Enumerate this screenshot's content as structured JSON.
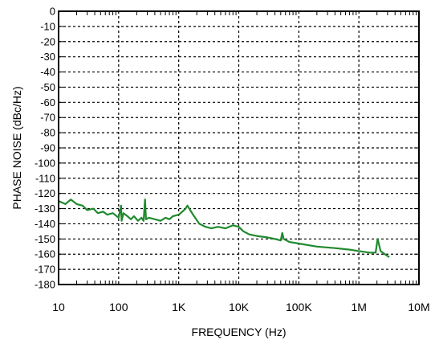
{
  "chart_data": {
    "type": "line",
    "xlabel": "FREQUENCY (Hz)",
    "ylabel": "PHASE NOISE (dBc/Hz)",
    "xscale": "log",
    "xlim": [
      10,
      10000000
    ],
    "ylim": [
      -180,
      0
    ],
    "grid": true,
    "x_tick_values": [
      10,
      100,
      1000,
      10000,
      100000,
      1000000,
      10000000
    ],
    "x_tick_labels": [
      "10",
      "100",
      "1K",
      "10K",
      "100K",
      "1M",
      "10M"
    ],
    "y_tick_values": [
      0,
      -10,
      -20,
      -30,
      -40,
      -50,
      -60,
      -70,
      -80,
      -90,
      -100,
      -110,
      -120,
      -130,
      -140,
      -150,
      -160,
      -170,
      -180
    ],
    "y_tick_labels": [
      "0",
      "-10",
      "-20",
      "-30",
      "-40",
      "-50",
      "-60",
      "-70",
      "-80",
      "-90",
      "-100",
      "-110",
      "-120",
      "-130",
      "-140",
      "-150",
      "-160",
      "-170",
      "-180"
    ],
    "line_color": "#1f8a2e",
    "series": [
      {
        "points": [
          [
            10,
            -125
          ],
          [
            13,
            -127
          ],
          [
            16,
            -124
          ],
          [
            20,
            -127
          ],
          [
            25,
            -128
          ],
          [
            30,
            -131
          ],
          [
            38,
            -130
          ],
          [
            45,
            -133
          ],
          [
            55,
            -132
          ],
          [
            65,
            -134
          ],
          [
            80,
            -133
          ],
          [
            100,
            -136
          ],
          [
            110,
            -128
          ],
          [
            112,
            -138
          ],
          [
            120,
            -133
          ],
          [
            140,
            -135
          ],
          [
            160,
            -137
          ],
          [
            180,
            -135
          ],
          [
            210,
            -138
          ],
          [
            240,
            -136
          ],
          [
            260,
            -138
          ],
          [
            275,
            -124
          ],
          [
            285,
            -137
          ],
          [
            320,
            -136
          ],
          [
            400,
            -137
          ],
          [
            500,
            -138
          ],
          [
            600,
            -136
          ],
          [
            700,
            -137
          ],
          [
            800,
            -135
          ],
          [
            1000,
            -134
          ],
          [
            1150,
            -132
          ],
          [
            1300,
            -130
          ],
          [
            1400,
            -128
          ],
          [
            1550,
            -131
          ],
          [
            1800,
            -135
          ],
          [
            2200,
            -140
          ],
          [
            2800,
            -142
          ],
          [
            3500,
            -143
          ],
          [
            4500,
            -142
          ],
          [
            6000,
            -143
          ],
          [
            8000,
            -141
          ],
          [
            10000,
            -142
          ],
          [
            12000,
            -145
          ],
          [
            15000,
            -147
          ],
          [
            20000,
            -148
          ],
          [
            30000,
            -149
          ],
          [
            40000,
            -150
          ],
          [
            50000,
            -151
          ],
          [
            53000,
            -146
          ],
          [
            56000,
            -150
          ],
          [
            70000,
            -152
          ],
          [
            100000,
            -153
          ],
          [
            200000,
            -155
          ],
          [
            400000,
            -156
          ],
          [
            700000,
            -157
          ],
          [
            1000000,
            -158
          ],
          [
            1500000,
            -159
          ],
          [
            1900000,
            -159
          ],
          [
            2050000,
            -150
          ],
          [
            2300000,
            -158
          ],
          [
            2700000,
            -160
          ],
          [
            3200000,
            -162
          ]
        ]
      }
    ]
  }
}
